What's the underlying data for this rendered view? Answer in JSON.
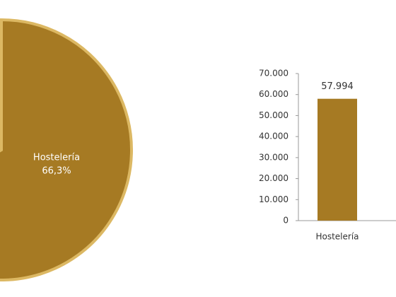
{
  "chart_data": [
    {
      "type": "pie",
      "categories": [
        "Hostelería"
      ],
      "values": [
        66.3
      ],
      "value_labels": [
        "66,3%"
      ],
      "colors": [
        "#a67a23"
      ]
    },
    {
      "type": "bar",
      "categories": [
        "Hostelería"
      ],
      "values": [
        57994
      ],
      "value_labels": [
        "57.994"
      ],
      "color": "#a67a23",
      "ylim": [
        0,
        70000
      ],
      "yticks": [
        0,
        {
          "value": 10000,
          "label": "10.000"
        },
        {
          "value": 20000,
          "label": "20.000"
        },
        {
          "value": 30000,
          "label": "30.000"
        },
        {
          "value": 40000,
          "label": "40.000"
        },
        {
          "value": 50000,
          "label": "50.000"
        },
        {
          "value": 60000,
          "label": "60.000"
        },
        {
          "value": 70000,
          "label": "70.000"
        }
      ]
    }
  ]
}
